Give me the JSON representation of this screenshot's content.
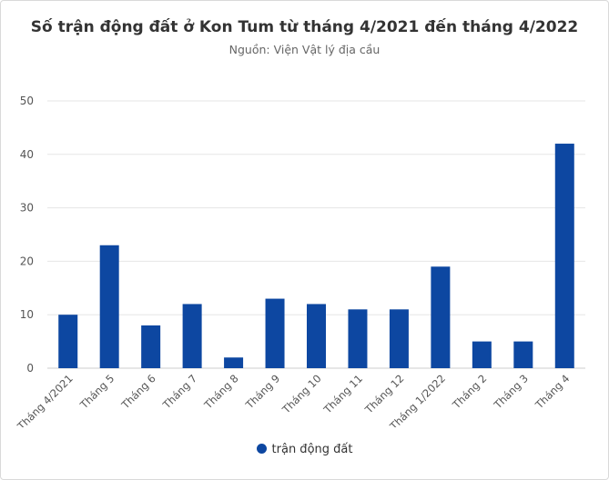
{
  "chart_data": {
    "type": "bar",
    "title": "Số trận động đất ở Kon Tum từ tháng 4/2021 đến tháng 4/2022",
    "subtitle": "Nguồn: Viện Vật lý địa cầu",
    "categories": [
      "Tháng 4/2021",
      "Tháng 5",
      "Tháng 6",
      "Tháng 7",
      "Tháng 8",
      "Tháng 9",
      "Tháng 10",
      "Tháng 11",
      "Tháng 12",
      "Tháng 1/2022",
      "Tháng 2",
      "Tháng 3",
      "Tháng 4"
    ],
    "series": [
      {
        "name": "trận động đất",
        "values": [
          10,
          23,
          8,
          12,
          2,
          13,
          12,
          11,
          11,
          19,
          5,
          5,
          42
        ],
        "color": "#0d47a1"
      }
    ],
    "yticks": [
      0,
      10,
      20,
      30,
      40,
      50
    ],
    "ylim": [
      0,
      50
    ],
    "grid": true,
    "legend_position": "bottom"
  }
}
